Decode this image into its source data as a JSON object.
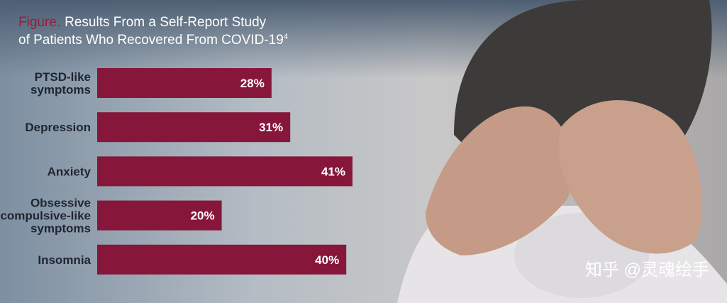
{
  "chart_data": {
    "type": "hbar",
    "title_label": "Figure.",
    "title_lines": [
      "Results From a Self-Report Study",
      "of Patients Who Recovered From COVID-19"
    ],
    "title_superscript": "4",
    "categories": [
      "PTSD-like symptoms",
      "Depression",
      "Anxiety",
      "Obsessive compulsive-like symptoms",
      "Insomnia"
    ],
    "values": [
      28,
      31,
      41,
      20,
      40
    ],
    "value_labels": [
      "28%",
      "31%",
      "41%",
      "20%",
      "40%"
    ],
    "color": "#87163b",
    "title_label_color": "#9b1c3f"
  },
  "watermark": "知乎 @灵魂绘手"
}
